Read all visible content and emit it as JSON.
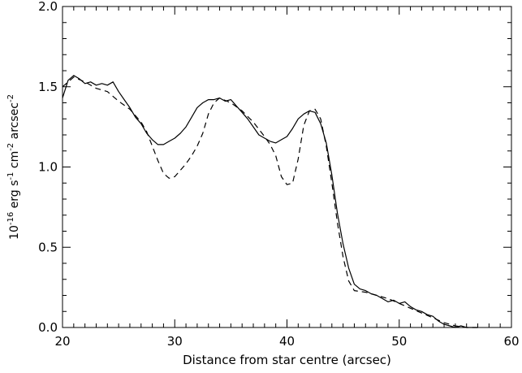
{
  "chart_data": {
    "type": "line",
    "title": "",
    "xlabel": "Distance from star centre (arcsec)",
    "ylabel": {
      "prefix": "10",
      "prefix_exp": "-16",
      "part1": " erg s",
      "part1_exp": "-1",
      "part2": " cm",
      "part2_exp": "-2",
      "part3": " arcsec",
      "part3_exp": "-2"
    },
    "xlim": [
      20,
      60
    ],
    "ylim": [
      0.0,
      2.0
    ],
    "xticks": [
      20,
      30,
      40,
      50,
      60
    ],
    "xtick_labels": [
      "20",
      "30",
      "40",
      "50",
      "60"
    ],
    "yticks": [
      0.0,
      0.5,
      1.0,
      1.5,
      2.0
    ],
    "ytick_labels": [
      "0.0",
      "0.5",
      "1.0",
      "1.5",
      "2.0"
    ],
    "grid": false,
    "series": [
      {
        "style": "solid",
        "x": [
          20,
          20.5,
          21,
          21.5,
          22,
          22.5,
          23,
          23.5,
          24,
          24.5,
          25,
          25.5,
          26,
          26.5,
          27,
          27.5,
          28,
          28.5,
          29,
          29.5,
          30,
          30.5,
          31,
          31.5,
          32,
          32.5,
          33,
          33.5,
          34,
          34.5,
          35,
          35.5,
          36,
          36.5,
          37,
          37.5,
          38,
          38.5,
          39,
          39.5,
          40,
          40.5,
          41,
          41.5,
          42,
          42.5,
          43,
          43.5,
          44,
          44.5,
          45,
          45.5,
          46,
          46.5,
          47,
          47.5,
          48,
          48.5,
          49,
          49.5,
          50,
          50.5,
          51,
          51.5,
          52,
          52.5,
          53,
          53.5,
          54,
          54.5,
          55,
          55.5,
          56,
          57
        ],
        "y": [
          1.43,
          1.54,
          1.57,
          1.55,
          1.52,
          1.53,
          1.51,
          1.52,
          1.51,
          1.53,
          1.47,
          1.42,
          1.37,
          1.31,
          1.27,
          1.21,
          1.17,
          1.14,
          1.14,
          1.16,
          1.18,
          1.21,
          1.25,
          1.31,
          1.37,
          1.4,
          1.42,
          1.42,
          1.43,
          1.41,
          1.42,
          1.38,
          1.34,
          1.3,
          1.25,
          1.2,
          1.18,
          1.16,
          1.15,
          1.17,
          1.19,
          1.24,
          1.3,
          1.33,
          1.35,
          1.34,
          1.27,
          1.15,
          0.95,
          0.71,
          0.52,
          0.37,
          0.27,
          0.24,
          0.23,
          0.21,
          0.2,
          0.18,
          0.16,
          0.17,
          0.15,
          0.16,
          0.13,
          0.11,
          0.1,
          0.08,
          0.07,
          0.04,
          0.02,
          0.01,
          0.0,
          0.01,
          0.0,
          0.0
        ]
      },
      {
        "style": "dashed",
        "x": [
          20,
          21,
          22,
          23,
          24,
          25,
          26,
          27,
          27.5,
          28,
          28.5,
          29,
          29.5,
          30,
          30.5,
          31,
          31.5,
          32,
          32.5,
          33,
          33.5,
          34,
          35,
          36,
          37,
          38,
          38.5,
          39,
          39.5,
          40,
          40.5,
          41,
          41.5,
          42,
          42.5,
          43,
          43.5,
          44,
          44.5,
          45,
          45.5,
          46,
          47,
          48,
          49,
          50,
          51,
          52,
          53,
          54,
          55,
          56,
          57
        ],
        "y": [
          1.5,
          1.56,
          1.53,
          1.49,
          1.47,
          1.41,
          1.36,
          1.28,
          1.22,
          1.13,
          1.04,
          0.96,
          0.93,
          0.94,
          0.98,
          1.02,
          1.07,
          1.13,
          1.21,
          1.33,
          1.4,
          1.43,
          1.4,
          1.35,
          1.28,
          1.19,
          1.14,
          1.07,
          0.94,
          0.89,
          0.9,
          1.05,
          1.26,
          1.35,
          1.36,
          1.3,
          1.13,
          0.9,
          0.65,
          0.44,
          0.29,
          0.23,
          0.22,
          0.2,
          0.18,
          0.15,
          0.12,
          0.09,
          0.06,
          0.03,
          0.01,
          0.0,
          0.0
        ]
      }
    ]
  }
}
